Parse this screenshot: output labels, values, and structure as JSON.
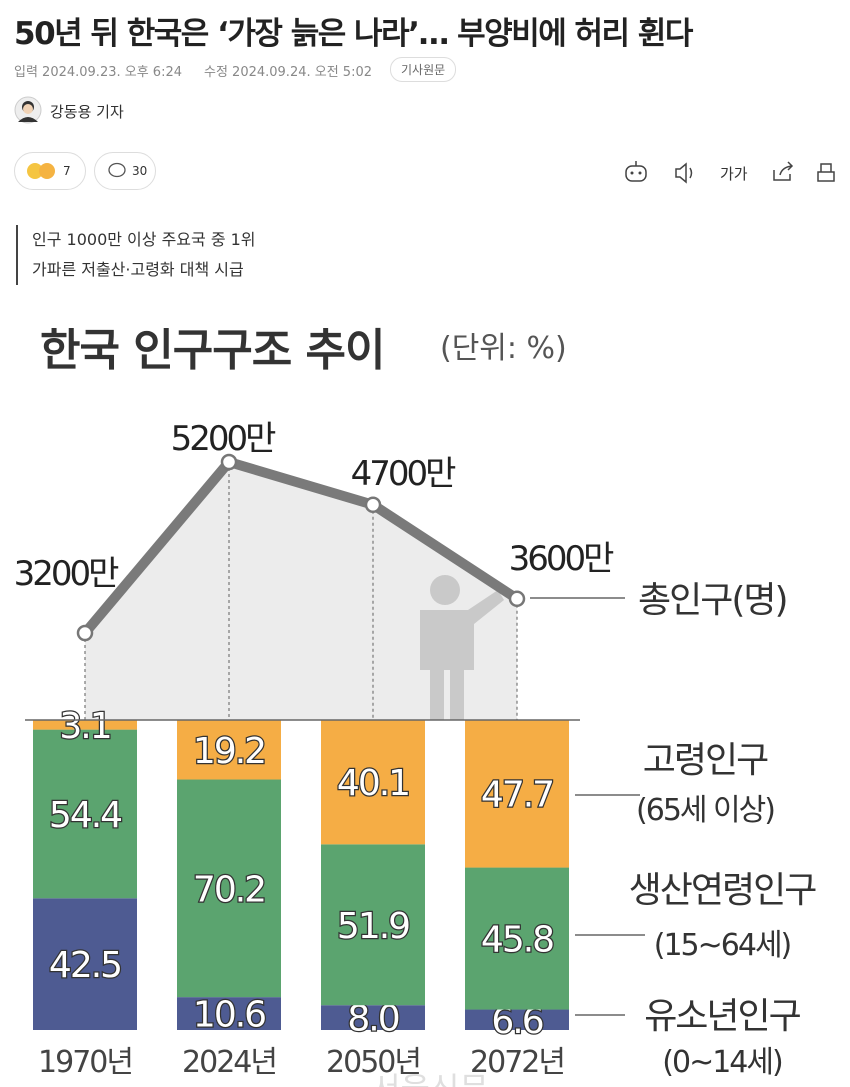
{
  "header": {
    "title": "50년 뒤 한국은 ‘가장 늙은 나라’… 부양비에 허리 휜다",
    "published": "입력 2024.09.23. 오후 6:24",
    "modified": "수정 2024.09.24. 오전 5:02",
    "original_button": "기사원문",
    "author": "강동용 기자"
  },
  "reactions": {
    "emotion_count": 7,
    "comment_count": 30
  },
  "toolbar": {
    "font_size": "가가"
  },
  "subtitles": [
    "인구 1000만 이상 주요국 중 1위",
    "가파른 저출산·고령화 대책 시급"
  ],
  "chart_data": {
    "type": "stacked_bar_line",
    "title": "한국 인구구조 추이",
    "unit": "(단위: %)",
    "categories": [
      "1970년",
      "2024년",
      "2050년",
      "2072년"
    ],
    "series": [
      {
        "name": "유소년인구",
        "age_range": "(0~14세)",
        "color": "#4e5b92",
        "values": [
          42.5,
          10.6,
          8.0,
          6.6
        ],
        "value_labels": [
          "42.5",
          "10.6",
          "8.0",
          "6.6"
        ]
      },
      {
        "name": "생산연령인구",
        "age_range": "(15~64세)",
        "color": "#5ba46f",
        "values": [
          54.4,
          70.2,
          51.9,
          45.8
        ]
      },
      {
        "name": "고령인구",
        "age_range": "(65세 이상)",
        "color": "#f5ad45",
        "values": [
          3.1,
          19.2,
          40.1,
          47.7
        ]
      }
    ],
    "total": {
      "name": "총인구(명)",
      "color": "#7a7a7a",
      "values": [
        3200,
        5200,
        4700,
        3600
      ],
      "value_labels": [
        "3200만",
        "5200만",
        "4700만",
        "3600만"
      ]
    },
    "watermark": "서울신문"
  }
}
